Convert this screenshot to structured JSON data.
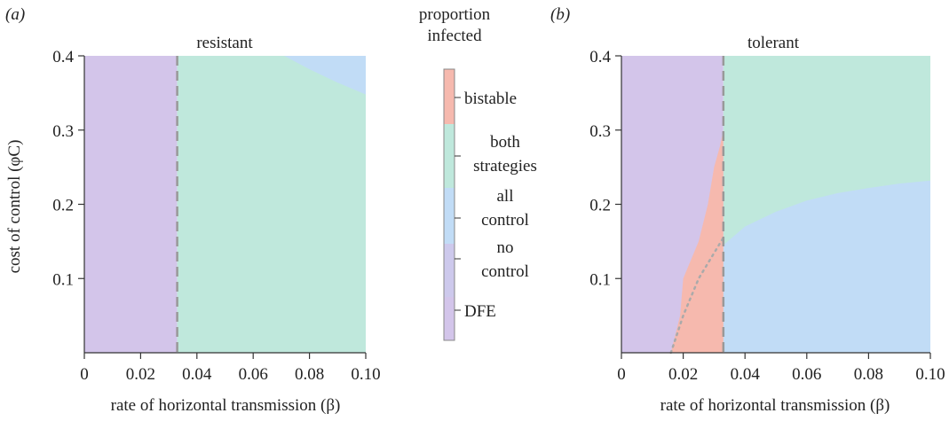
{
  "chart_data": [
    {
      "type": "heatmap",
      "panel_label": "(a)",
      "title": "resistant",
      "xlabel": "rate of horizontal transmission (β)",
      "ylabel": "cost of control (φC)",
      "xlim": [
        0,
        0.1
      ],
      "ylim": [
        0,
        0.4
      ],
      "xticks": [
        "0",
        "0.02",
        "0.04",
        "0.06",
        "0.08",
        "0.10"
      ],
      "yticks": [
        "0.1",
        "0.2",
        "0.3",
        "0.4"
      ],
      "threshold_beta": 0.033,
      "regions": [
        {
          "name": "DFE",
          "beta_range": [
            0,
            0.033
          ],
          "cost_range": [
            0,
            0.4
          ]
        },
        {
          "name": "both strategies",
          "beta_range": [
            0.033,
            0.1
          ],
          "cost_range": [
            0,
            0.4
          ]
        },
        {
          "name": "all control",
          "boundary": [
            [
              0.071,
              0.4
            ],
            [
              0.08,
              0.382
            ],
            [
              0.09,
              0.364
            ],
            [
              0.1,
              0.348
            ]
          ]
        }
      ]
    },
    {
      "type": "heatmap",
      "panel_label": "(b)",
      "title": "tolerant",
      "xlabel": "rate of horizontal transmission (β)",
      "ylabel": "",
      "xlim": [
        0,
        0.1
      ],
      "ylim": [
        0,
        0.4
      ],
      "xticks": [
        "0",
        "0.02",
        "0.04",
        "0.06",
        "0.08",
        "0.10"
      ],
      "yticks": [
        "0.1",
        "0.2",
        "0.3",
        "0.4"
      ],
      "threshold_beta": 0.033,
      "regions": [
        {
          "name": "DFE",
          "beta_range": [
            0,
            0.033
          ],
          "cost_range": [
            0,
            0.4
          ]
        },
        {
          "name": "bistable",
          "boundary": [
            [
              0.016,
              0
            ],
            [
              0.019,
              0.05
            ],
            [
              0.02,
              0.1
            ],
            [
              0.025,
              0.15
            ],
            [
              0.028,
              0.2
            ],
            [
              0.03,
              0.25
            ],
            [
              0.032,
              0.28
            ],
            [
              0.033,
              0.3
            ],
            [
              0.033,
              0
            ]
          ]
        },
        {
          "name": "all control",
          "boundary": [
            [
              0.033,
              0.145
            ],
            [
              0.04,
              0.17
            ],
            [
              0.05,
              0.19
            ],
            [
              0.06,
              0.205
            ],
            [
              0.07,
              0.215
            ],
            [
              0.08,
              0.222
            ],
            [
              0.09,
              0.228
            ],
            [
              0.1,
              0.232
            ]
          ]
        },
        {
          "name": "both strategies",
          "note": "above all-control boundary for beta > 0.033"
        }
      ],
      "dotted_curve": [
        [
          0.016,
          0
        ],
        [
          0.02,
          0.05
        ],
        [
          0.025,
          0.1
        ],
        [
          0.033,
          0.155
        ]
      ]
    }
  ],
  "legend": {
    "title_line1": "proportion",
    "title_line2": "infected",
    "entries": [
      {
        "key": "bistable",
        "label": "bistable",
        "color": "#f6b9ae"
      },
      {
        "key": "both",
        "label": "both",
        "label2": "strategies",
        "color": "#bfe8dc"
      },
      {
        "key": "all",
        "label": "all",
        "label2": "control",
        "color": "#c1dcf6"
      },
      {
        "key": "no",
        "label": "no",
        "label2": "control",
        "color": "#cdc9ec"
      },
      {
        "key": "dfe",
        "label": "DFE",
        "color": "#d3c5ea"
      }
    ]
  },
  "colors": {
    "dfe": "#d3c5ea",
    "both": "#bfe8dc",
    "allcontrol": "#c1dcf6",
    "bistable": "#f6b9ae",
    "dashed": "#999999"
  }
}
